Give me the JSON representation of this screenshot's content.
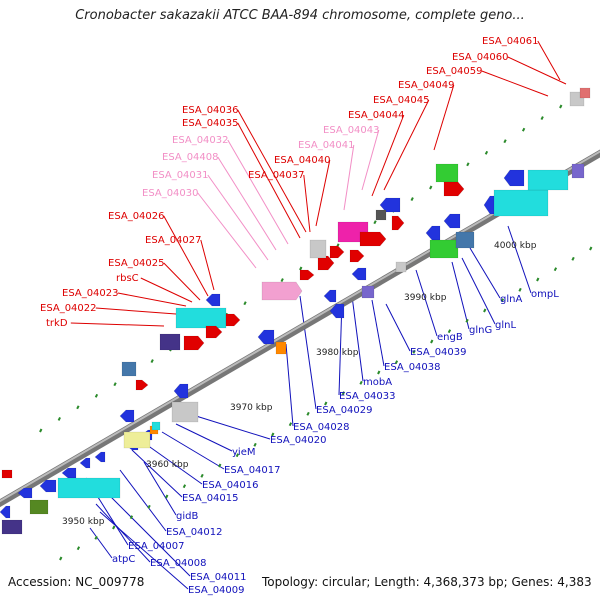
{
  "title": "Cronobacter sakazakii ATCC BAA-894 chromosome, complete geno...",
  "footer": {
    "accession": "Accession: NC_009778",
    "summary": "Topology: circular; Length: 4,368,373 bp; Genes: 4,383"
  },
  "colors": {
    "label_forward": "#dd0000",
    "label_forward_light": "#f28fc6",
    "label_reverse": "#1111bb",
    "backbone": "#888888",
    "tick": "#2a8a2a"
  },
  "scale_labels": [
    "3950 kbp",
    "3960 kbp",
    "3970 kbp",
    "3980 kbp",
    "3990 kbp",
    "4000 kbp"
  ],
  "upper_labels": [
    {
      "text": "ESA_04061",
      "tone": "red"
    },
    {
      "text": "ESA_04060",
      "tone": "red"
    },
    {
      "text": "ESA_04059",
      "tone": "red"
    },
    {
      "text": "ESA_04049",
      "tone": "red"
    },
    {
      "text": "ESA_04045",
      "tone": "red"
    },
    {
      "text": "ESA_04044",
      "tone": "red"
    },
    {
      "text": "ESA_04043",
      "tone": "pink"
    },
    {
      "text": "ESA_04041",
      "tone": "pink"
    },
    {
      "text": "ESA_04040",
      "tone": "red"
    },
    {
      "text": "ESA_04037",
      "tone": "red"
    },
    {
      "text": "ESA_04036",
      "tone": "red"
    },
    {
      "text": "ESA_04035",
      "tone": "red"
    },
    {
      "text": "ESA_04032",
      "tone": "pink"
    },
    {
      "text": "ESA_04408",
      "tone": "pink"
    },
    {
      "text": "ESA_04031",
      "tone": "pink"
    },
    {
      "text": "ESA_04030",
      "tone": "pink"
    },
    {
      "text": "ESA_04026",
      "tone": "red"
    },
    {
      "text": "ESA_04027",
      "tone": "red"
    },
    {
      "text": "ESA_04025",
      "tone": "red"
    },
    {
      "text": "rbsC",
      "tone": "red"
    },
    {
      "text": "ESA_04023",
      "tone": "red"
    },
    {
      "text": "ESA_04022",
      "tone": "red"
    },
    {
      "text": "trkD",
      "tone": "red"
    }
  ],
  "lower_labels": [
    "ompL",
    "glnA",
    "glnL",
    "glnG",
    "engB",
    "ESA_04039",
    "ESA_04038",
    "mobA",
    "ESA_04033",
    "ESA_04029",
    "ESA_04028",
    "ESA_04020",
    "yieM",
    "ESA_04017",
    "ESA_04016",
    "ESA_04015",
    "gidB",
    "ESA_04012",
    "ESA_04007",
    "atpC",
    "ESA_04008",
    "ESA_04011",
    "ESA_04009"
  ]
}
